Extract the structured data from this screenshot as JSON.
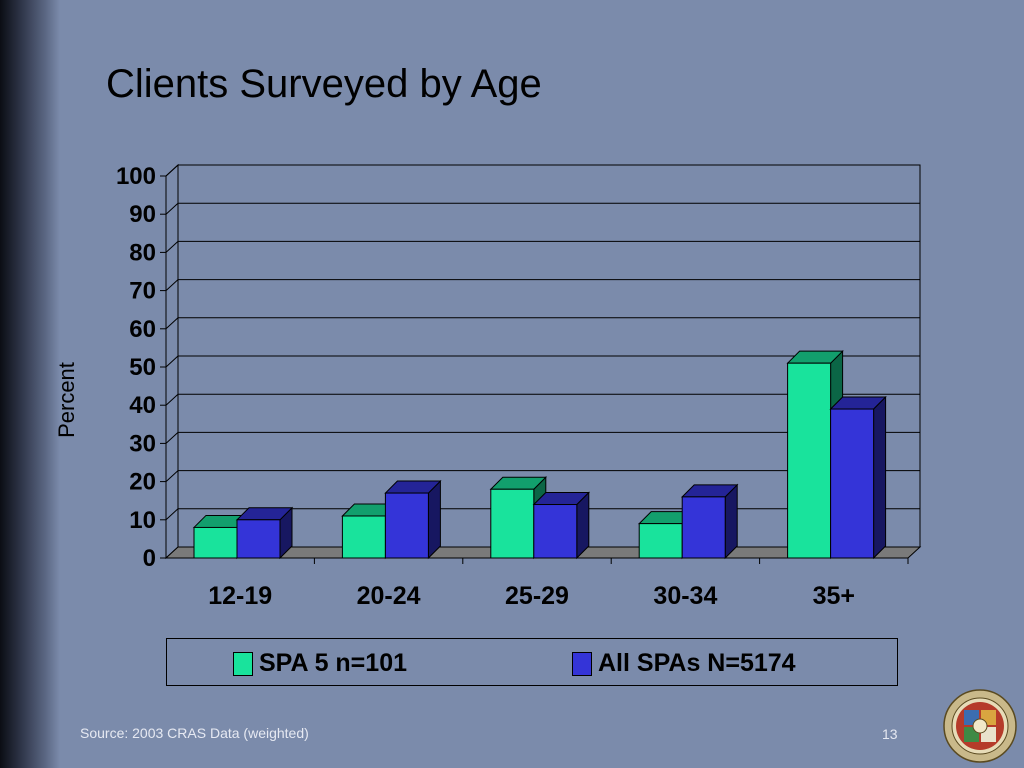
{
  "slide": {
    "title": "Clients Surveyed by Age",
    "source": "Source: 2003 CRAS Data (weighted)",
    "page_number": "13",
    "logo": {
      "icon": "county-seal-icon",
      "text": "COUNTY OF LOS ANGELES · CALIFORNIA"
    }
  },
  "colors": {
    "background": "#7b8bab",
    "series_1": "#19e39c",
    "series_2": "#3434d8",
    "floor": "#7a7a7a"
  },
  "chart_data": {
    "type": "bar",
    "style": "3d-clustered",
    "title": "",
    "xlabel": "",
    "ylabel": "Percent",
    "categories": [
      "12-19",
      "20-24",
      "25-29",
      "30-34",
      "35+"
    ],
    "series": [
      {
        "name": "SPA 5  n=101",
        "values": [
          8,
          11,
          18,
          9,
          51
        ]
      },
      {
        "name": "All SPAs  N=5174",
        "values": [
          10,
          17,
          14,
          16,
          39
        ]
      }
    ],
    "ylim": [
      0,
      100
    ],
    "yticks": [
      "0",
      "10",
      "20",
      "30",
      "40",
      "50",
      "60",
      "70",
      "80",
      "90",
      "100"
    ],
    "grid": true,
    "legend_position": "bottom"
  }
}
